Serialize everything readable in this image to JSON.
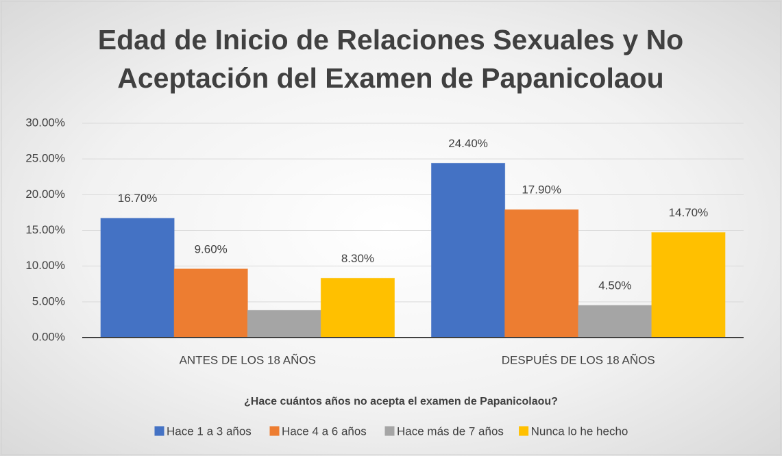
{
  "chart_data": {
    "type": "bar",
    "title": "Edad de Inicio de Relaciones Sexuales y No Aceptación del Examen de Papanicolaou",
    "x_label": "¿Hace cuántos años no acepta el examen de Papanicolaou?",
    "categories": [
      "ANTES DE LOS 18 AÑOS",
      "DESPUÉS DE LOS 18 AÑOS"
    ],
    "series": [
      {
        "name": "Hace 1 a 3 años",
        "color": "#4472c4",
        "values": [
          16.7,
          24.4
        ],
        "value_labels": [
          "16.70%",
          "24.40%"
        ]
      },
      {
        "name": "Hace 4 a 6 años",
        "color": "#ed7d31",
        "values": [
          9.6,
          17.9
        ],
        "value_labels": [
          "9.60%",
          "17.90%"
        ]
      },
      {
        "name": "Hace más de 7 años",
        "color": "#a5a5a5",
        "values": [
          3.8,
          4.5
        ],
        "value_labels": [
          null,
          "4.50%"
        ]
      },
      {
        "name": "Nunca lo he hecho",
        "color": "#ffc000",
        "values": [
          8.3,
          14.7
        ],
        "value_labels": [
          "8.30%",
          "14.70%"
        ]
      }
    ],
    "ylim": [
      0,
      30
    ],
    "yticks": [
      {
        "value": 0,
        "label": "0.00%"
      },
      {
        "value": 5,
        "label": "5.00%"
      },
      {
        "value": 10,
        "label": "10.00%"
      },
      {
        "value": 15,
        "label": "15.00%"
      },
      {
        "value": 20,
        "label": "20.00%"
      },
      {
        "value": 25,
        "label": "25.00%"
      },
      {
        "value": 30,
        "label": "30.00%"
      }
    ],
    "grid": true,
    "legend": "bottom"
  }
}
